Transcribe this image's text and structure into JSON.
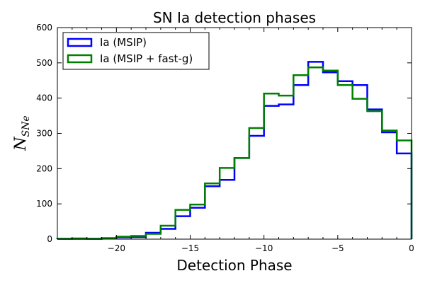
{
  "chart_data": {
    "type": "histogram-step",
    "title": "SN Ia detection phases",
    "xlabel": "Detection Phase",
    "ylabel": "N_SNe",
    "xlim": [
      -24,
      0
    ],
    "ylim": [
      0,
      600
    ],
    "x_ticks": [
      -20,
      -15,
      -10,
      -5,
      0
    ],
    "x_tick_labels": [
      "−20",
      "−15",
      "−10",
      "−5",
      "0"
    ],
    "y_ticks": [
      0,
      100,
      200,
      300,
      400,
      500,
      600
    ],
    "y_tick_labels": [
      "0",
      "100",
      "200",
      "300",
      "400",
      "500",
      "600"
    ],
    "bin_edges": [
      -24,
      -23,
      -22,
      -21,
      -20,
      -19,
      -18,
      -17,
      -16,
      -15,
      -14,
      -13,
      -12,
      -11,
      -10,
      -9,
      -8,
      -7,
      -6,
      -5,
      -4,
      -3,
      -2,
      -1,
      0
    ],
    "legend_position": "upper-left",
    "grid": false,
    "series": [
      {
        "name": "Ia (MSIP)",
        "color": "#0000ff",
        "values": [
          1,
          1,
          1,
          2,
          5,
          6,
          18,
          29,
          65,
          89,
          150,
          168,
          230,
          293,
          378,
          382,
          437,
          503,
          473,
          448,
          437,
          368,
          303,
          243
        ]
      },
      {
        "name": "Ia (MSIP + fast-g)",
        "color": "#008000",
        "values": [
          1,
          2,
          1,
          3,
          7,
          9,
          15,
          38,
          83,
          98,
          158,
          202,
          230,
          315,
          413,
          407,
          465,
          487,
          478,
          437,
          398,
          363,
          308,
          280
        ]
      }
    ]
  }
}
